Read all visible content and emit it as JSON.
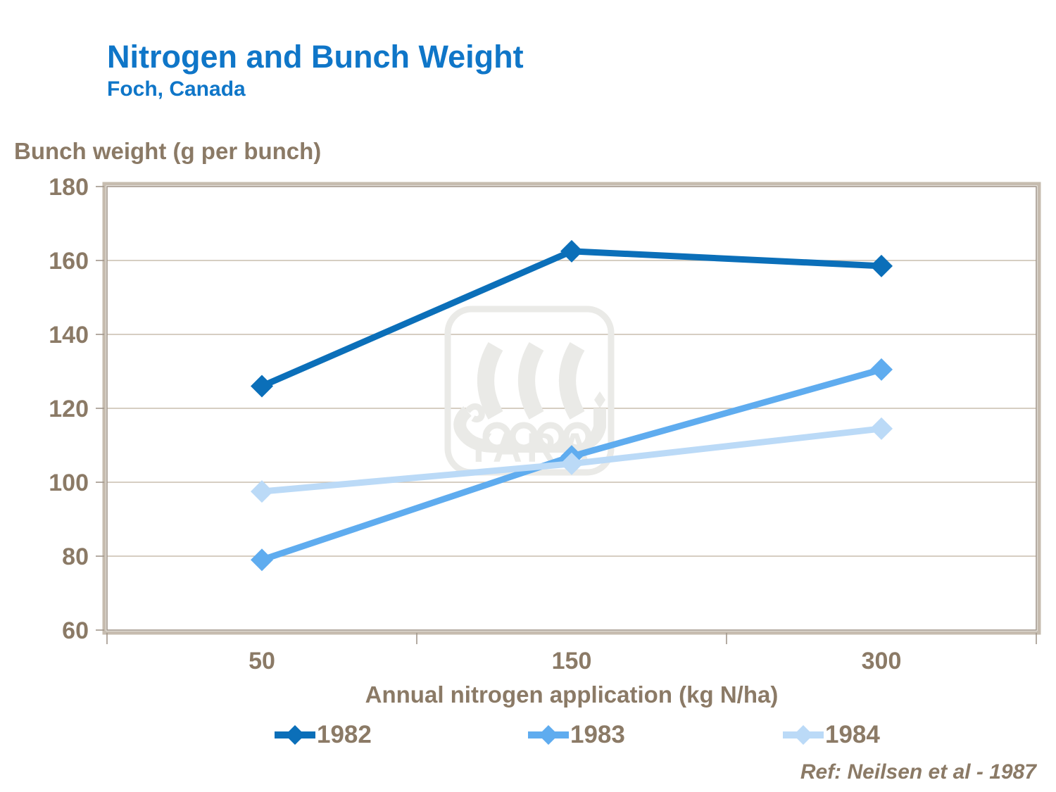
{
  "header": {
    "title": "Nitrogen and Bunch Weight",
    "subtitle": "Foch, Canada"
  },
  "chart_data": {
    "type": "line",
    "categories": [
      "50",
      "150",
      "300"
    ],
    "series": [
      {
        "name": "1982",
        "color": "#0B6FB9",
        "values": [
          126,
          162.5,
          158.5
        ]
      },
      {
        "name": "1983",
        "color": "#5FACEF",
        "values": [
          79,
          107,
          130.5
        ]
      },
      {
        "name": "1984",
        "color": "#BBDAF7",
        "values": [
          97.5,
          105,
          114.5
        ]
      }
    ],
    "xlabel": "Annual nitrogen application (kg N/ha)",
    "ylabel": "Bunch weight (g per bunch)",
    "ylim": [
      60,
      180
    ],
    "y_ticks": [
      180,
      160,
      140,
      120,
      100,
      80,
      60
    ],
    "grid": "horizontal-only",
    "legend_position": "bottom"
  },
  "watermark": {
    "text": "YARA"
  },
  "footer": {
    "ref": "Ref: Neilsen et al - 1987"
  },
  "colors": {
    "title_blue": "#0F76C8",
    "text_taupe": "#8B7A66",
    "gridline": "#C8BEAD",
    "frame_outer": "#C6BCAF",
    "frame_inner": "#A1968A",
    "watermark": "#EAEAE7",
    "background": "#FFFFFF"
  }
}
